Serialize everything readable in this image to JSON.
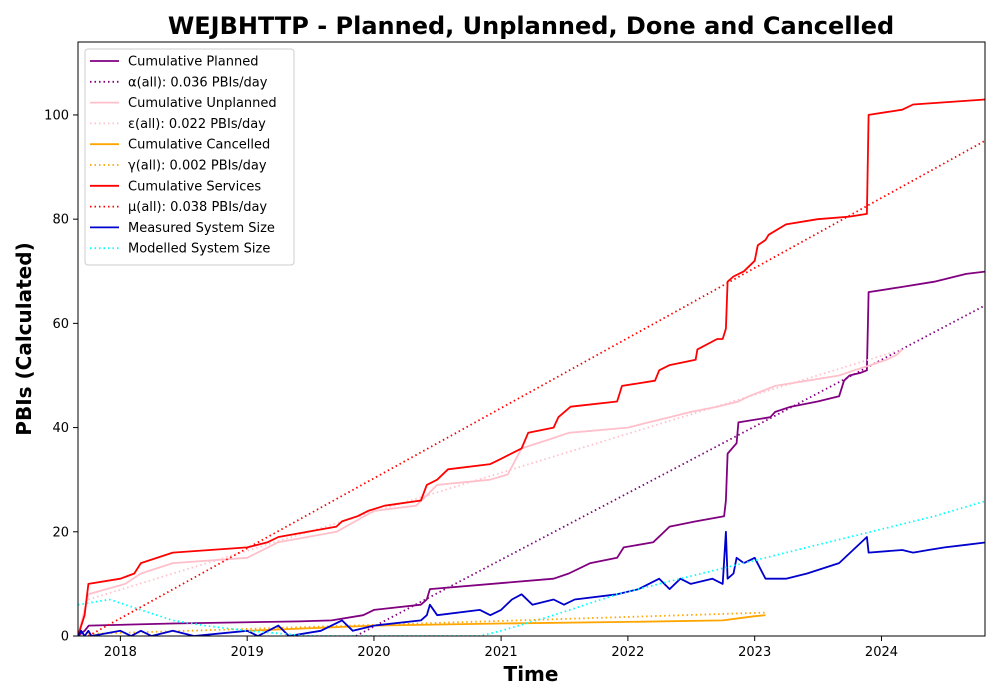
{
  "chart_data": {
    "type": "line",
    "title": "WEJBHTTP - Planned, Unplanned, Done  and Cancelled",
    "xlabel": "Time",
    "ylabel": "PBIs (Calculated)",
    "xlim": [
      "2017-09-01",
      "2024-10-25"
    ],
    "ylim": [
      0,
      114
    ],
    "x_ticks": [
      "2018",
      "2019",
      "2020",
      "2021",
      "2022",
      "2023",
      "2024"
    ],
    "y_ticks": [
      "0",
      "20",
      "40",
      "60",
      "80",
      "100"
    ],
    "grid": false,
    "legend_position": "upper-left",
    "series": [
      {
        "name": "Cumulative Planned",
        "color": "#800080",
        "style": "solid",
        "points": [
          [
            "2017-09-01",
            0
          ],
          [
            "2017-09-20",
            1
          ],
          [
            "2017-10-02",
            2
          ],
          [
            "2018-06-01",
            2.4
          ],
          [
            "2019-06-01",
            2.8
          ],
          [
            "2019-09-01",
            3
          ],
          [
            "2019-12-01",
            4
          ],
          [
            "2020-01-01",
            5
          ],
          [
            "2020-05-15",
            6
          ],
          [
            "2020-06-01",
            7
          ],
          [
            "2020-06-10",
            9
          ],
          [
            "2021-06-01",
            11
          ],
          [
            "2021-07-15",
            12
          ],
          [
            "2021-09-15",
            14
          ],
          [
            "2021-12-01",
            15
          ],
          [
            "2021-12-20",
            17
          ],
          [
            "2022-03-15",
            18
          ],
          [
            "2022-05-01",
            21
          ],
          [
            "2022-07-15",
            22
          ],
          [
            "2022-10-05",
            23
          ],
          [
            "2022-10-10",
            26
          ],
          [
            "2022-10-15",
            35
          ],
          [
            "2022-11-10",
            37
          ],
          [
            "2022-11-15",
            41
          ],
          [
            "2023-02-15",
            42
          ],
          [
            "2023-03-01",
            43
          ],
          [
            "2023-04-15",
            44
          ],
          [
            "2023-07-01",
            45
          ],
          [
            "2023-09-01",
            46
          ],
          [
            "2023-09-15",
            49
          ],
          [
            "2023-10-01",
            50
          ],
          [
            "2023-11-01",
            50.5
          ],
          [
            "2023-11-20",
            51
          ],
          [
            "2023-11-25",
            66
          ],
          [
            "2024-03-01",
            67
          ],
          [
            "2024-06-01",
            68
          ],
          [
            "2024-08-01",
            69
          ],
          [
            "2024-09-01",
            69.5
          ],
          [
            "2024-11-01",
            70
          ],
          [
            "2024-11-10",
            71.5
          ],
          [
            "2024-11-20",
            73
          ]
        ]
      },
      {
        "name": "α(all): 0.036 PBIs/day",
        "color": "#800080",
        "style": "dotted",
        "points": [
          [
            "2019-11-10",
            0
          ],
          [
            "2024-11-10",
            64
          ]
        ]
      },
      {
        "name": "Cumulative Unplanned",
        "color": "#ffc0cb",
        "style": "solid",
        "points": [
          [
            "2017-09-01",
            0
          ],
          [
            "2017-09-20",
            5
          ],
          [
            "2017-10-01",
            8
          ],
          [
            "2018-01-15",
            10
          ],
          [
            "2018-03-01",
            12
          ],
          [
            "2018-06-01",
            14
          ],
          [
            "2019-01-01",
            15
          ],
          [
            "2019-04-01",
            18
          ],
          [
            "2019-09-15",
            20
          ],
          [
            "2020-01-01",
            24
          ],
          [
            "2020-05-01",
            25
          ],
          [
            "2020-06-01",
            27
          ],
          [
            "2020-07-01",
            29
          ],
          [
            "2020-12-01",
            30
          ],
          [
            "2021-01-20",
            31
          ],
          [
            "2021-03-01",
            36
          ],
          [
            "2021-06-01",
            38
          ],
          [
            "2021-07-15",
            39
          ],
          [
            "2022-01-01",
            40
          ],
          [
            "2022-03-01",
            41
          ],
          [
            "2022-05-01",
            42
          ],
          [
            "2022-07-01",
            43
          ],
          [
            "2022-09-15",
            44
          ],
          [
            "2022-11-15",
            45
          ],
          [
            "2022-12-15",
            46
          ],
          [
            "2023-03-01",
            48
          ],
          [
            "2023-06-01",
            49
          ],
          [
            "2023-09-01",
            50
          ],
          [
            "2023-10-15",
            51
          ],
          [
            "2023-12-01",
            52
          ],
          [
            "2024-01-15",
            53
          ],
          [
            "2024-02-15",
            54
          ],
          [
            "2024-03-01",
            55
          ]
        ]
      },
      {
        "name": "ε(all): 0.022 PBIs/day",
        "color": "#ffc0cb",
        "style": "dotted",
        "points": [
          [
            "2017-10-01",
            7
          ],
          [
            "2024-03-01",
            55
          ]
        ]
      },
      {
        "name": "Cumulative Cancelled",
        "color": "#ffa500",
        "style": "solid",
        "points": [
          [
            "2019-01-01",
            1
          ],
          [
            "2020-01-01",
            2
          ],
          [
            "2021-01-01",
            2.4
          ],
          [
            "2022-01-01",
            2.7
          ],
          [
            "2022-10-01",
            3
          ],
          [
            "2022-11-15",
            3.4
          ],
          [
            "2023-01-01",
            3.8
          ],
          [
            "2023-02-01",
            4
          ]
        ]
      },
      {
        "name": "γ(all): 0.002 PBIs/day",
        "color": "#ffa500",
        "style": "dotted",
        "points": [
          [
            "2017-10-01",
            0.4
          ],
          [
            "2023-02-01",
            4.5
          ]
        ]
      },
      {
        "name": "Cumulative Services",
        "color": "#ff0000",
        "style": "solid",
        "points": [
          [
            "2017-09-01",
            0
          ],
          [
            "2017-09-20",
            4
          ],
          [
            "2017-10-01",
            10
          ],
          [
            "2018-01-01",
            11
          ],
          [
            "2018-02-10",
            12
          ],
          [
            "2018-03-01",
            14
          ],
          [
            "2018-06-01",
            16
          ],
          [
            "2019-01-01",
            17
          ],
          [
            "2019-03-01",
            18
          ],
          [
            "2019-04-01",
            19
          ],
          [
            "2019-09-15",
            21
          ],
          [
            "2019-10-01",
            22
          ],
          [
            "2019-11-15",
            23
          ],
          [
            "2019-12-15",
            24
          ],
          [
            "2020-02-01",
            25
          ],
          [
            "2020-05-15",
            26
          ],
          [
            "2020-06-01",
            29
          ],
          [
            "2020-07-01",
            30
          ],
          [
            "2020-08-01",
            32
          ],
          [
            "2020-12-01",
            33
          ],
          [
            "2021-01-01",
            34
          ],
          [
            "2021-03-01",
            36
          ],
          [
            "2021-03-20",
            39
          ],
          [
            "2021-06-01",
            40
          ],
          [
            "2021-06-15",
            42
          ],
          [
            "2021-07-20",
            44
          ],
          [
            "2021-12-01",
            45
          ],
          [
            "2021-12-15",
            48
          ],
          [
            "2022-03-20",
            49
          ],
          [
            "2022-04-01",
            51
          ],
          [
            "2022-05-01",
            52
          ],
          [
            "2022-07-15",
            53
          ],
          [
            "2022-07-20",
            55
          ],
          [
            "2022-09-15",
            57
          ],
          [
            "2022-10-01",
            57
          ],
          [
            "2022-10-10",
            59
          ],
          [
            "2022-10-15",
            68
          ],
          [
            "2022-11-01",
            69
          ],
          [
            "2022-12-01",
            70
          ],
          [
            "2023-01-01",
            72
          ],
          [
            "2023-01-10",
            75
          ],
          [
            "2023-02-01",
            76
          ],
          [
            "2023-02-10",
            77
          ],
          [
            "2023-04-01",
            79
          ],
          [
            "2023-07-01",
            80
          ],
          [
            "2023-10-01",
            80.5
          ],
          [
            "2023-11-20",
            81
          ],
          [
            "2023-11-25",
            100
          ],
          [
            "2024-03-01",
            101
          ],
          [
            "2024-04-01",
            102
          ],
          [
            "2024-11-01",
            103
          ],
          [
            "2024-11-20",
            104
          ]
        ]
      },
      {
        "name": "μ(all): 0.038 PBIs/day",
        "color": "#ff0000",
        "style": "dotted",
        "points": [
          [
            "2017-10-01",
            0
          ],
          [
            "2024-11-20",
            96
          ]
        ]
      },
      {
        "name": "Measured System Size",
        "color": "#0000cd",
        "style": "solid",
        "points": [
          [
            "2017-09-01",
            0
          ],
          [
            "2017-09-10",
            1
          ],
          [
            "2017-09-20",
            0
          ],
          [
            "2017-10-01",
            1
          ],
          [
            "2017-10-10",
            0
          ],
          [
            "2018-01-01",
            1
          ],
          [
            "2018-02-01",
            0
          ],
          [
            "2018-03-01",
            1
          ],
          [
            "2018-04-01",
            0
          ],
          [
            "2018-06-01",
            1
          ],
          [
            "2018-08-01",
            0
          ],
          [
            "2019-01-01",
            1
          ],
          [
            "2019-02-01",
            0
          ],
          [
            "2019-04-01",
            2
          ],
          [
            "2019-05-01",
            0
          ],
          [
            "2019-08-01",
            1
          ],
          [
            "2019-10-01",
            3
          ],
          [
            "2019-11-01",
            1
          ],
          [
            "2020-01-01",
            2
          ],
          [
            "2020-05-15",
            3
          ],
          [
            "2020-06-01",
            4
          ],
          [
            "2020-06-10",
            6
          ],
          [
            "2020-07-01",
            4
          ],
          [
            "2020-11-01",
            5
          ],
          [
            "2020-12-01",
            4
          ],
          [
            "2021-01-01",
            5
          ],
          [
            "2021-02-01",
            7
          ],
          [
            "2021-03-01",
            8
          ],
          [
            "2021-04-01",
            6
          ],
          [
            "2021-06-01",
            7
          ],
          [
            "2021-07-01",
            6
          ],
          [
            "2021-08-01",
            7
          ],
          [
            "2021-12-01",
            8
          ],
          [
            "2022-02-01",
            9
          ],
          [
            "2022-04-01",
            11
          ],
          [
            "2022-05-01",
            9
          ],
          [
            "2022-06-01",
            11
          ],
          [
            "2022-07-01",
            10
          ],
          [
            "2022-09-01",
            11
          ],
          [
            "2022-10-01",
            10
          ],
          [
            "2022-10-10",
            20
          ],
          [
            "2022-10-15",
            11
          ],
          [
            "2022-11-01",
            12
          ],
          [
            "2022-11-10",
            15
          ],
          [
            "2022-12-01",
            14
          ],
          [
            "2023-01-01",
            15
          ],
          [
            "2023-02-01",
            11
          ],
          [
            "2023-04-01",
            11
          ],
          [
            "2023-06-01",
            12
          ],
          [
            "2023-09-01",
            14
          ],
          [
            "2023-11-20",
            19
          ],
          [
            "2023-11-25",
            16
          ],
          [
            "2024-03-01",
            16.5
          ],
          [
            "2024-04-01",
            16
          ],
          [
            "2024-05-15",
            16.5
          ],
          [
            "2024-07-01",
            17
          ],
          [
            "2024-09-01",
            17.5
          ],
          [
            "2024-11-01",
            18
          ],
          [
            "2024-11-15",
            21
          ],
          [
            "2024-11-20",
            20
          ],
          [
            "2025-01-01",
            19
          ]
        ]
      },
      {
        "name": "Modelled System Size",
        "color": "#00ffff",
        "style": "dotted",
        "points": [
          [
            "2017-09-01",
            6
          ],
          [
            "2017-12-01",
            7
          ],
          [
            "2018-03-01",
            5
          ],
          [
            "2018-06-01",
            3
          ],
          [
            "2018-09-01",
            2
          ],
          [
            "2019-01-01",
            1
          ],
          [
            "2019-07-01",
            0
          ],
          [
            "2020-01-01",
            0
          ],
          [
            "2020-11-01",
            0
          ],
          [
            "2021-01-01",
            1
          ],
          [
            "2021-06-01",
            4
          ],
          [
            "2021-12-01",
            8
          ],
          [
            "2022-06-01",
            11
          ],
          [
            "2022-12-01",
            14
          ],
          [
            "2023-06-01",
            17
          ],
          [
            "2023-12-01",
            20
          ],
          [
            "2024-06-01",
            23
          ],
          [
            "2024-11-01",
            26
          ],
          [
            "2025-01-01",
            26
          ]
        ]
      }
    ]
  }
}
